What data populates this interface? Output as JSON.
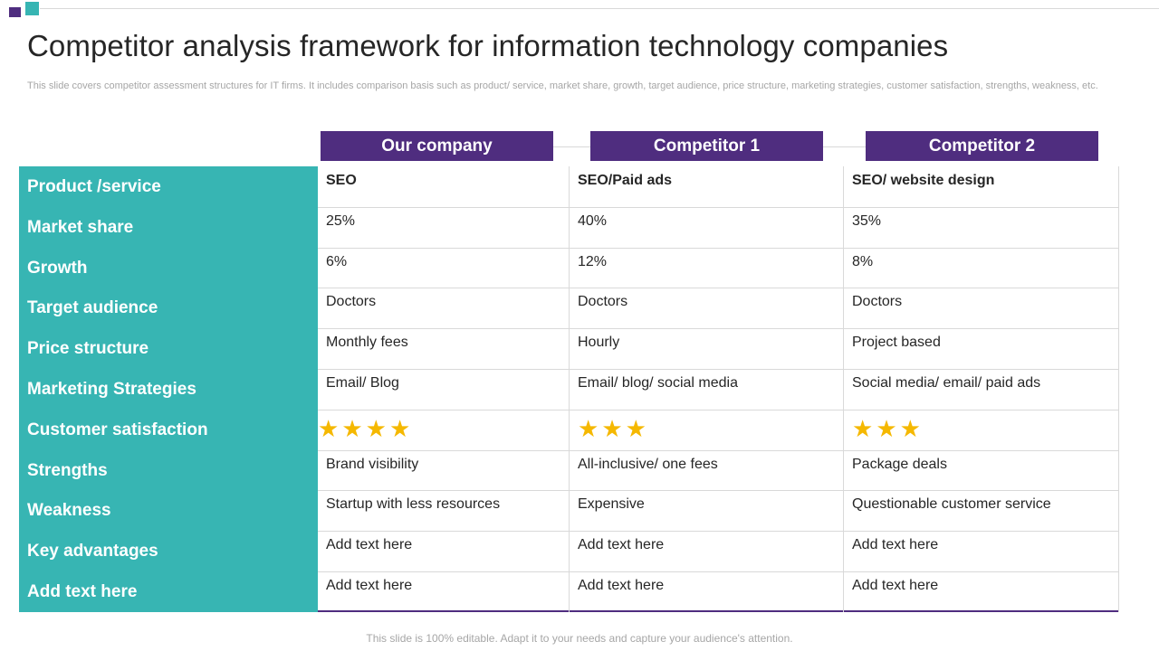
{
  "title": "Competitor analysis framework for information technology companies",
  "subtitle": "This slide covers competitor assessment structures for IT firms. It includes comparison basis such as product/ service, market share, growth, target audience, price structure, marketing strategies, customer satisfaction, strengths, weakness, etc.",
  "footer": "This slide is 100% editable. Adapt it to your needs and capture your audience's attention.",
  "colors": {
    "purple": "#4f2d7f",
    "teal": "#37b5b3",
    "star": "#f5b800"
  },
  "columns": [
    "Our company",
    "Competitor 1",
    "Competitor 2"
  ],
  "rows": [
    {
      "label": "Product /service",
      "values": [
        "SEO",
        "SEO/Paid ads",
        "SEO/ website design"
      ]
    },
    {
      "label": "Market share",
      "values": [
        "25%",
        "40%",
        "35%"
      ]
    },
    {
      "label": "Growth",
      "values": [
        "6%",
        "12%",
        "8%"
      ]
    },
    {
      "label": "Target audience",
      "values": [
        "Doctors",
        "Doctors",
        "Doctors"
      ]
    },
    {
      "label": "Price structure",
      "values": [
        "Monthly  fees",
        "Hourly",
        "Project based"
      ]
    },
    {
      "label": "Marketing Strategies",
      "values": [
        "Email/ Blog",
        "Email/ blog/ social media",
        "Social media/ email/ paid ads"
      ]
    },
    {
      "label": "Customer satisfaction",
      "star_ratings": [
        4,
        3,
        3
      ]
    },
    {
      "label": "Strengths",
      "values": [
        "Brand visibility",
        "All-inclusive/  one fees",
        "Package deals"
      ]
    },
    {
      "label": "Weakness",
      "values": [
        "Startup with less resources",
        "Expensive",
        "Questionable customer service"
      ]
    },
    {
      "label": "Key advantages",
      "values": [
        "Add text here",
        "Add text here",
        "Add text here"
      ]
    },
    {
      "label": "Add text here",
      "values": [
        "Add text here",
        "Add text here",
        "Add text here"
      ]
    }
  ],
  "star_icon": "star-icon"
}
